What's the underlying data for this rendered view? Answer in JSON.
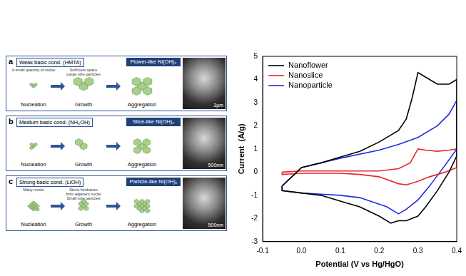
{
  "diagram": {
    "panels": [
      {
        "letter": "a",
        "condition": "Weak basic cond. (HMTA)",
        "product": "Flower-like Ni(OH)₂",
        "steps": [
          "Nucleation",
          "Growth",
          "Aggregation"
        ],
        "notes": [
          [
            "A small quantity of nuclei"
          ],
          [
            "Sufficient space",
            "Large size particles"
          ],
          []
        ],
        "scale_bar": "3μm"
      },
      {
        "letter": "b",
        "condition": "Medium basic cond. (NH₄OH)",
        "product": "Slice-like Ni(OH)₂",
        "steps": [
          "Nucleation",
          "Growth",
          "Aggregation"
        ],
        "notes": [
          [],
          [],
          []
        ],
        "scale_bar": "500nm"
      },
      {
        "letter": "c",
        "condition": "Strong basic cond. (LiOH)",
        "product": "Particle-like Ni(OH)₂",
        "steps": [
          "Nucleation",
          "Growth",
          "Aggregation"
        ],
        "notes": [
          [
            "Many nuclei"
          ],
          [
            "Steric hindrance",
            "from adjacent nuclei",
            "Small size particles"
          ],
          []
        ],
        "scale_bar": "500nm"
      }
    ]
  },
  "chart_data": {
    "type": "line",
    "x_label": "Potential (V vs Hg/HgO)",
    "y_label": "Current  (A/g)",
    "xlim": [
      -0.1,
      0.4
    ],
    "xticks": [
      -0.1,
      {
        "value": 0.0,
        "label": "0.0"
      },
      0.1,
      0.2,
      0.3,
      0.4
    ],
    "ylim": [
      -3,
      5
    ],
    "yticks": [
      -3,
      -2,
      -1,
      0,
      1,
      2,
      3,
      4,
      5
    ],
    "grid": false,
    "legend": "upper left",
    "series": [
      {
        "name": "Nanoflower",
        "color": "#000000",
        "x": [
          -0.05,
          0.0,
          0.05,
          0.1,
          0.15,
          0.2,
          0.25,
          0.27,
          0.285,
          0.3,
          0.32,
          0.35,
          0.38,
          0.4,
          0.4,
          0.38,
          0.35,
          0.32,
          0.3,
          0.27,
          0.25,
          0.23,
          0.2,
          0.15,
          0.1,
          0.05,
          0.0,
          -0.05,
          -0.05
        ],
        "values": [
          -0.6,
          0.2,
          0.4,
          0.65,
          0.9,
          1.3,
          1.8,
          2.3,
          3.2,
          4.3,
          4.1,
          3.8,
          3.8,
          4.0,
          0.7,
          0.0,
          -0.8,
          -1.5,
          -1.9,
          -2.1,
          -2.1,
          -2.2,
          -1.9,
          -1.5,
          -1.25,
          -1.0,
          -0.9,
          -0.8,
          -0.6
        ]
      },
      {
        "name": "Nanoslice",
        "color": "#e8262b",
        "x": [
          -0.05,
          0.0,
          0.1,
          0.2,
          0.25,
          0.28,
          0.3,
          0.32,
          0.35,
          0.38,
          0.4,
          0.4,
          0.37,
          0.33,
          0.3,
          0.27,
          0.25,
          0.2,
          0.15,
          0.1,
          0.0,
          -0.05,
          -0.05
        ],
        "values": [
          0.0,
          0.05,
          0.05,
          0.05,
          0.15,
          0.4,
          1.0,
          0.95,
          0.9,
          0.95,
          1.0,
          0.2,
          0.0,
          -0.2,
          -0.4,
          -0.55,
          -0.5,
          -0.2,
          -0.1,
          -0.05,
          -0.05,
          -0.1,
          0.0
        ]
      },
      {
        "name": "Nanoparticle",
        "color": "#1f2ee0",
        "x": [
          -0.05,
          0.0,
          0.1,
          0.2,
          0.25,
          0.3,
          0.35,
          0.38,
          0.4,
          0.4,
          0.37,
          0.33,
          0.3,
          0.27,
          0.25,
          0.22,
          0.15,
          0.1,
          0.05,
          0.0,
          -0.05,
          -0.05
        ],
        "values": [
          -0.6,
          0.2,
          0.6,
          0.95,
          1.2,
          1.5,
          2.0,
          2.5,
          3.1,
          1.0,
          0.3,
          -0.6,
          -1.2,
          -1.6,
          -1.8,
          -1.5,
          -1.1,
          -1.0,
          -0.95,
          -0.9,
          -0.8,
          -0.6
        ]
      }
    ]
  }
}
